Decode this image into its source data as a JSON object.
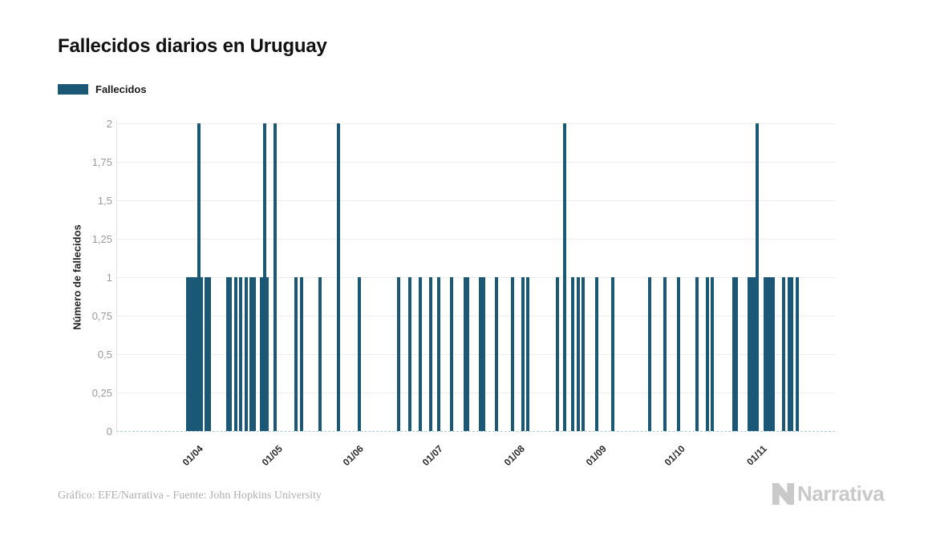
{
  "header": {
    "title": "Fallecidos diarios en Uruguay"
  },
  "legend": {
    "label": "Fallecidos",
    "swatch_color": "#1a5875"
  },
  "footer": {
    "credit": "Gráfico: EFE/Narrativa - Fuente: John Hopkins University",
    "brand": "Narrativa"
  },
  "chart_data": {
    "type": "bar",
    "title": "Fallecidos diarios en Uruguay",
    "xlabel": "",
    "ylabel": "Número de fallecidos",
    "series_name": "Fallecidos",
    "bar_color": "#1a5875",
    "grid": "horizontal",
    "legend_position": "top-left",
    "ylim": [
      0,
      2
    ],
    "yticks": [
      {
        "value": 0,
        "label": "0"
      },
      {
        "value": 0.25,
        "label": "0,25"
      },
      {
        "value": 0.5,
        "label": "0,5"
      },
      {
        "value": 0.75,
        "label": "0,75"
      },
      {
        "value": 1,
        "label": "1"
      },
      {
        "value": 1.25,
        "label": "1,25"
      },
      {
        "value": 1.5,
        "label": "1,5"
      },
      {
        "value": 1.75,
        "label": "1,75"
      },
      {
        "value": 2,
        "label": "2"
      }
    ],
    "xticks": [
      {
        "day": 1,
        "month": 4,
        "label": "01/04"
      },
      {
        "day": 1,
        "month": 5,
        "label": "01/05"
      },
      {
        "day": 1,
        "month": 6,
        "label": "01/06"
      },
      {
        "day": 1,
        "month": 7,
        "label": "01/07"
      },
      {
        "day": 1,
        "month": 8,
        "label": "01/08"
      },
      {
        "day": 1,
        "month": 9,
        "label": "01/09"
      },
      {
        "day": 1,
        "month": 10,
        "label": "01/10"
      },
      {
        "day": 1,
        "month": 11,
        "label": "01/11"
      }
    ],
    "x_domain_note": "daily series, days not listed in points have value 0",
    "points": [
      {
        "date": "30/03",
        "value": 1
      },
      {
        "date": "31/03",
        "value": 1
      },
      {
        "date": "01/04",
        "value": 1
      },
      {
        "date": "02/04",
        "value": 1
      },
      {
        "date": "03/04",
        "value": 2
      },
      {
        "date": "04/04",
        "value": 1
      },
      {
        "date": "06/04",
        "value": 1
      },
      {
        "date": "07/04",
        "value": 1
      },
      {
        "date": "14/04",
        "value": 1
      },
      {
        "date": "15/04",
        "value": 1
      },
      {
        "date": "17/04",
        "value": 1
      },
      {
        "date": "19/04",
        "value": 1
      },
      {
        "date": "21/04",
        "value": 1
      },
      {
        "date": "23/04",
        "value": 1
      },
      {
        "date": "24/04",
        "value": 1
      },
      {
        "date": "27/04",
        "value": 1
      },
      {
        "date": "28/04",
        "value": 2
      },
      {
        "date": "29/04",
        "value": 1
      },
      {
        "date": "02/05",
        "value": 2
      },
      {
        "date": "10/05",
        "value": 1
      },
      {
        "date": "12/05",
        "value": 1
      },
      {
        "date": "19/05",
        "value": 1
      },
      {
        "date": "26/05",
        "value": 2
      },
      {
        "date": "03/06",
        "value": 1
      },
      {
        "date": "18/06",
        "value": 1
      },
      {
        "date": "22/06",
        "value": 1
      },
      {
        "date": "26/06",
        "value": 1
      },
      {
        "date": "30/06",
        "value": 1
      },
      {
        "date": "03/07",
        "value": 1
      },
      {
        "date": "08/07",
        "value": 1
      },
      {
        "date": "13/07",
        "value": 1
      },
      {
        "date": "14/07",
        "value": 1
      },
      {
        "date": "19/07",
        "value": 1
      },
      {
        "date": "20/07",
        "value": 1
      },
      {
        "date": "25/07",
        "value": 1
      },
      {
        "date": "31/07",
        "value": 1
      },
      {
        "date": "04/08",
        "value": 1
      },
      {
        "date": "06/08",
        "value": 1
      },
      {
        "date": "17/08",
        "value": 1
      },
      {
        "date": "20/08",
        "value": 2
      },
      {
        "date": "23/08",
        "value": 1
      },
      {
        "date": "25/08",
        "value": 1
      },
      {
        "date": "27/08",
        "value": 1
      },
      {
        "date": "01/09",
        "value": 1
      },
      {
        "date": "07/09",
        "value": 1
      },
      {
        "date": "21/09",
        "value": 1
      },
      {
        "date": "27/09",
        "value": 1
      },
      {
        "date": "02/10",
        "value": 1
      },
      {
        "date": "09/10",
        "value": 1
      },
      {
        "date": "13/10",
        "value": 1
      },
      {
        "date": "15/10",
        "value": 1
      },
      {
        "date": "23/10",
        "value": 1
      },
      {
        "date": "24/10",
        "value": 1
      },
      {
        "date": "29/10",
        "value": 1
      },
      {
        "date": "30/10",
        "value": 1
      },
      {
        "date": "31/10",
        "value": 1
      },
      {
        "date": "01/11",
        "value": 2
      },
      {
        "date": "04/11",
        "value": 1
      },
      {
        "date": "05/11",
        "value": 1
      },
      {
        "date": "06/11",
        "value": 1
      },
      {
        "date": "07/11",
        "value": 1
      },
      {
        "date": "11/11",
        "value": 1
      },
      {
        "date": "13/11",
        "value": 1
      },
      {
        "date": "14/11",
        "value": 1
      },
      {
        "date": "16/11",
        "value": 1
      }
    ]
  }
}
